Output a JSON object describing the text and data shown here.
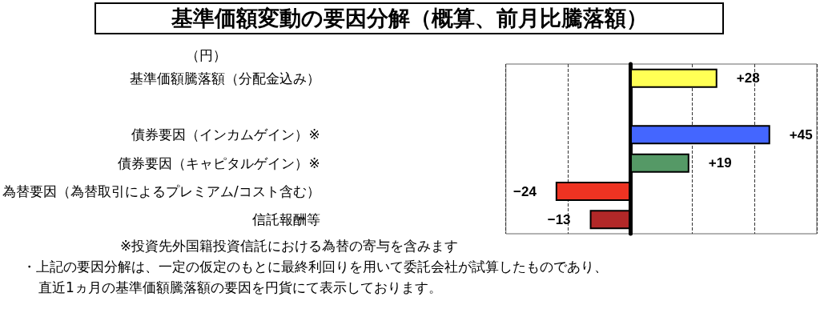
{
  "chart_data": {
    "type": "bar",
    "orientation": "horizontal",
    "title": "基準価額変動の要因分解（概算、前月比騰落額）",
    "categories": [
      "基準価額騰落額（分配金込み）",
      null,
      "債券要因（インカムゲイン）※",
      "債券要因（キャピタルゲイン）※",
      "為替要因（為替取引によるプレミアム/コスト含む）",
      "信託報酬等"
    ],
    "values": [
      28,
      null,
      45,
      19,
      -24,
      -13
    ],
    "value_labels": [
      "+28",
      null,
      "+45",
      "+19",
      "−24",
      "−13"
    ],
    "colors": [
      "#ffff55",
      null,
      "#4466ff",
      "#559966",
      "#ee3322",
      "#b22828"
    ],
    "grid": "x",
    "annotations": [
      "（円）",
      "※投資先外国籍投資信託における為替の寄与を含みます",
      "・上記の要因分解は、一定の仮定のもとに最終利回りを用いて委託会社が試算したものであり、",
      "直近1ヵ月の基準価額騰落額の要因を円貨にて表示しております。"
    ]
  }
}
